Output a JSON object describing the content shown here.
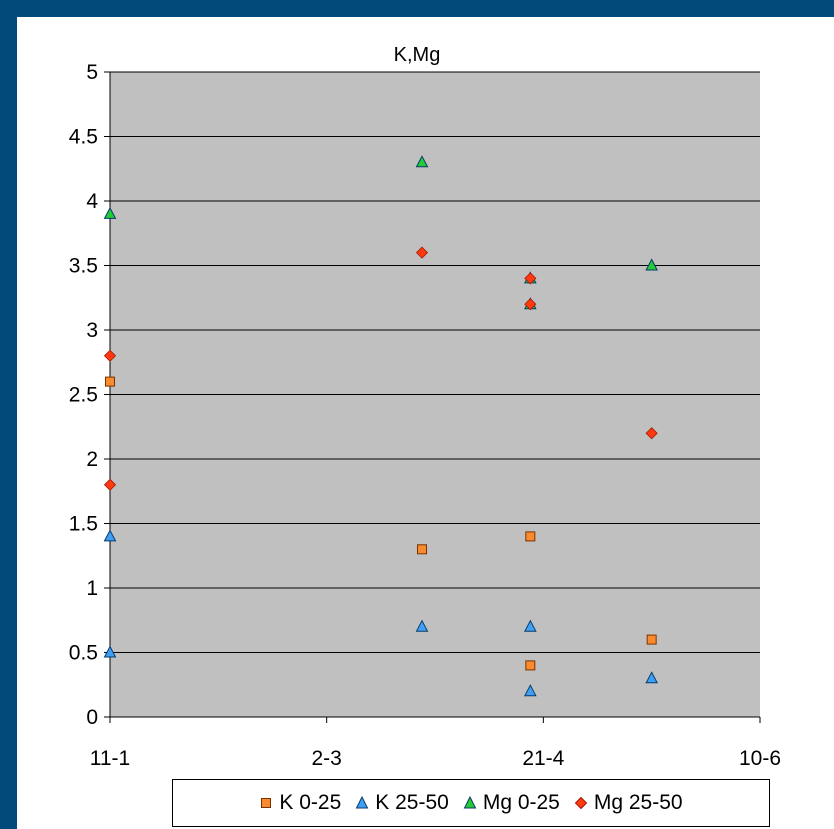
{
  "chart_data": {
    "type": "scatter",
    "title": "K,Mg",
    "xlabel": "",
    "ylabel": "",
    "x_tick_labels": [
      "11-1",
      "2-3",
      "21-4",
      "10-6"
    ],
    "xlim": [
      "11-1",
      "10-6"
    ],
    "ylim": [
      0,
      5
    ],
    "y_ticks": [
      "0",
      "0.5",
      "1",
      "1.5",
      "2",
      "2.5",
      "3",
      "3.5",
      "4",
      "4.5",
      "5"
    ],
    "grid": true,
    "legend_position": "bottom",
    "plot_background": "#c0c0c0",
    "series": [
      {
        "name": "K 0-25",
        "marker": "square",
        "color": "#f98a2e",
        "points": [
          {
            "x": "11-1",
            "y": 2.6
          },
          {
            "x": "24-3",
            "y": 1.3
          },
          {
            "x": "18-4",
            "y": 1.4
          },
          {
            "x": "18-4",
            "y": 0.4
          },
          {
            "x": "16-5",
            "y": 0.6
          }
        ]
      },
      {
        "name": "K 25-50",
        "marker": "triangle",
        "color": "#3f9ff5",
        "points": [
          {
            "x": "11-1",
            "y": 1.4
          },
          {
            "x": "11-1",
            "y": 0.5
          },
          {
            "x": "24-3",
            "y": 0.7
          },
          {
            "x": "18-4",
            "y": 0.7
          },
          {
            "x": "18-4",
            "y": 0.2
          },
          {
            "x": "16-5",
            "y": 0.3
          }
        ]
      },
      {
        "name": "Mg 0-25",
        "marker": "triangle",
        "color": "#22cc33",
        "points": [
          {
            "x": "11-1",
            "y": 3.9
          },
          {
            "x": "24-3",
            "y": 4.3
          },
          {
            "x": "18-4",
            "y": 3.4
          },
          {
            "x": "18-4",
            "y": 3.2
          },
          {
            "x": "16-5",
            "y": 3.5
          }
        ]
      },
      {
        "name": "Mg 25-50",
        "marker": "diamond",
        "color": "#ff3a10",
        "points": [
          {
            "x": "11-1",
            "y": 2.8
          },
          {
            "x": "11-1",
            "y": 1.8
          },
          {
            "x": "24-3",
            "y": 3.6
          },
          {
            "x": "18-4",
            "y": 3.4
          },
          {
            "x": "18-4",
            "y": 3.2
          },
          {
            "x": "16-5",
            "y": 2.2
          }
        ]
      }
    ]
  }
}
